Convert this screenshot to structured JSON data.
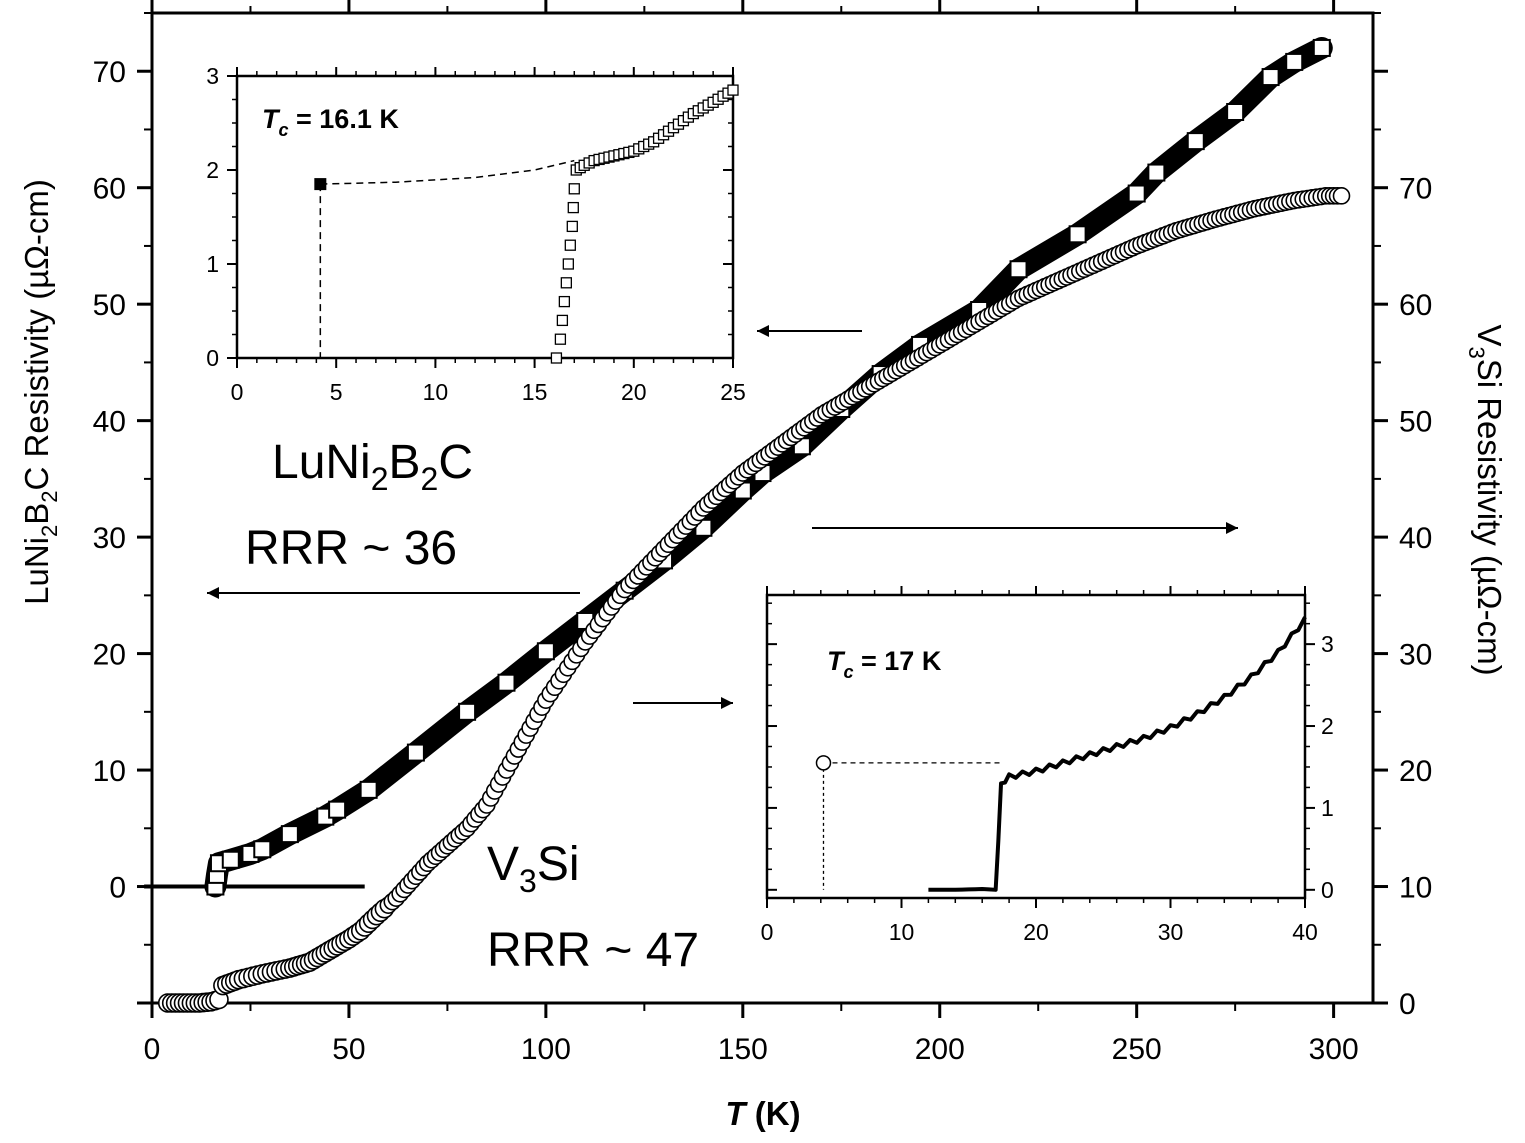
{
  "chart_data": {
    "type": "scatter",
    "xlabel": {
      "italic": "T",
      "rest": " (K)"
    },
    "ylabel_left": {
      "prefix": "LuNi",
      "sub1": "2",
      "mid": "B",
      "sub2": "2",
      "suffix": "C Resistivity (µΩ-cm)"
    },
    "ylabel_right": {
      "prefix": "V",
      "sub": "3",
      "suffix": "Si Resistivity (µΩ-cm)"
    },
    "xlim": [
      0,
      310
    ],
    "ylim_left": [
      -10,
      75
    ],
    "ylim_right": [
      0,
      85
    ],
    "x_ticks": [
      0,
      50,
      100,
      150,
      200,
      250,
      300
    ],
    "y_ticks_left": [
      0,
      10,
      20,
      30,
      40,
      50,
      60,
      70
    ],
    "y_ticks_right": [
      0,
      10,
      20,
      30,
      40,
      50,
      60,
      70
    ],
    "annotations": {
      "lu_name": {
        "a": "LuNi",
        "s1": "2",
        "b": "B",
        "s2": "2",
        "c": "C"
      },
      "lu_rrr": "RRR ~ 36",
      "v3si_name": {
        "a": "V",
        "s": "3",
        "b": "Si"
      },
      "v3si_rrr": "RRR ~ 47"
    },
    "series": [
      {
        "name": "LuNi2B2C",
        "axis": "left",
        "marker": "square",
        "points": [
          [
            16.1,
            0
          ],
          [
            16.5,
            1.0
          ],
          [
            17,
            2.0
          ],
          [
            20,
            2.3
          ],
          [
            25,
            2.8
          ],
          [
            28,
            3.2
          ],
          [
            35,
            4.5
          ],
          [
            44,
            6.0
          ],
          [
            47,
            6.6
          ],
          [
            55,
            8.3
          ],
          [
            67,
            11.5
          ],
          [
            80,
            15.0
          ],
          [
            90,
            17.5
          ],
          [
            100,
            20.2
          ],
          [
            110,
            22.8
          ],
          [
            120,
            25.4
          ],
          [
            130,
            28.0
          ],
          [
            140,
            30.8
          ],
          [
            150,
            34.0
          ],
          [
            155,
            35.5
          ],
          [
            165,
            37.8
          ],
          [
            175,
            41.0
          ],
          [
            185,
            44.0
          ],
          [
            195,
            46.5
          ],
          [
            210,
            49.5
          ],
          [
            220,
            53.0
          ],
          [
            235,
            56.0
          ],
          [
            250,
            59.5
          ],
          [
            255,
            61.3
          ],
          [
            265,
            64.0
          ],
          [
            275,
            66.5
          ],
          [
            284,
            69.5
          ],
          [
            290,
            70.8
          ],
          [
            297,
            72.0
          ]
        ]
      },
      {
        "name": "V3Si",
        "axis": "right",
        "marker": "circle",
        "points": [
          [
            4,
            0
          ],
          [
            8,
            0
          ],
          [
            12,
            0
          ],
          [
            15,
            0.1
          ],
          [
            17,
            0.3
          ],
          [
            18,
            1.5
          ],
          [
            22,
            2.0
          ],
          [
            28,
            2.5
          ],
          [
            35,
            3.0
          ],
          [
            40,
            3.5
          ],
          [
            45,
            4.5
          ],
          [
            50,
            5.5
          ],
          [
            53,
            6.2
          ],
          [
            57,
            7.5
          ],
          [
            62,
            9.0
          ],
          [
            66,
            10.5
          ],
          [
            70,
            12.0
          ],
          [
            75,
            13.5
          ],
          [
            80,
            15.0
          ],
          [
            85,
            17.0
          ],
          [
            90,
            20.0
          ],
          [
            95,
            23.0
          ],
          [
            100,
            26.0
          ],
          [
            110,
            31.0
          ],
          [
            120,
            35.5
          ],
          [
            130,
            39.0
          ],
          [
            140,
            42.5
          ],
          [
            150,
            45.5
          ],
          [
            160,
            48.0
          ],
          [
            170,
            50.5
          ],
          [
            180,
            52.5
          ],
          [
            190,
            54.5
          ],
          [
            200,
            56.5
          ],
          [
            210,
            58.5
          ],
          [
            220,
            60.5
          ],
          [
            230,
            62.0
          ],
          [
            240,
            63.5
          ],
          [
            250,
            65.0
          ],
          [
            260,
            66.3
          ],
          [
            270,
            67.3
          ],
          [
            280,
            68.2
          ],
          [
            290,
            68.9
          ],
          [
            298,
            69.3
          ],
          [
            302,
            69.3
          ]
        ]
      }
    ],
    "insets": [
      {
        "name": "LuNi2B2C inset",
        "label": {
          "italic": "T",
          "sub": "c",
          "rest": " = 16.1 K"
        },
        "xlim": [
          0,
          25
        ],
        "ylim": [
          0,
          3
        ],
        "x_ticks": [
          0,
          5,
          10,
          15,
          20,
          25
        ],
        "y_ticks": [
          0,
          1,
          2,
          3
        ],
        "marker": "square",
        "tc_point": [
          4.2,
          1.85
        ],
        "points": [
          [
            16.1,
            0
          ],
          [
            16.3,
            0.2
          ],
          [
            16.4,
            0.4
          ],
          [
            16.5,
            0.6
          ],
          [
            16.6,
            0.8
          ],
          [
            16.7,
            1.0
          ],
          [
            16.8,
            1.2
          ],
          [
            16.9,
            1.4
          ],
          [
            16.95,
            1.6
          ],
          [
            17.0,
            1.8
          ],
          [
            17.1,
            2.0
          ],
          [
            17.5,
            2.05
          ],
          [
            18,
            2.1
          ],
          [
            19,
            2.15
          ],
          [
            20,
            2.2
          ],
          [
            21,
            2.3
          ],
          [
            22,
            2.45
          ],
          [
            23,
            2.6
          ],
          [
            24,
            2.72
          ],
          [
            25,
            2.85
          ]
        ],
        "extrapolation": [
          [
            4.2,
            1.85
          ],
          [
            8,
            1.87
          ],
          [
            12,
            1.92
          ],
          [
            15,
            2.0
          ],
          [
            17,
            2.1
          ]
        ]
      },
      {
        "name": "V3Si inset",
        "label": {
          "italic": "T",
          "sub": "c",
          "rest": " = 17 K"
        },
        "xlim": [
          0,
          40
        ],
        "ylim": [
          -0.1,
          3.6
        ],
        "x_ticks": [
          0,
          10,
          20,
          30,
          40
        ],
        "y_ticks": [
          0,
          1,
          2,
          3
        ],
        "marker": "circle",
        "tc_point": [
          4.2,
          1.55
        ],
        "points": [
          [
            12,
            0.0
          ],
          [
            14,
            0.0
          ],
          [
            16,
            0.01
          ],
          [
            17,
            0.0
          ],
          [
            17.2,
            0.6
          ],
          [
            17.4,
            1.3
          ],
          [
            18,
            1.38
          ],
          [
            20,
            1.45
          ],
          [
            22,
            1.55
          ],
          [
            24,
            1.65
          ],
          [
            26,
            1.75
          ],
          [
            28,
            1.85
          ],
          [
            30,
            1.98
          ],
          [
            32,
            2.15
          ],
          [
            34,
            2.35
          ],
          [
            36,
            2.6
          ],
          [
            38,
            2.9
          ],
          [
            40,
            3.3
          ]
        ]
      }
    ]
  }
}
